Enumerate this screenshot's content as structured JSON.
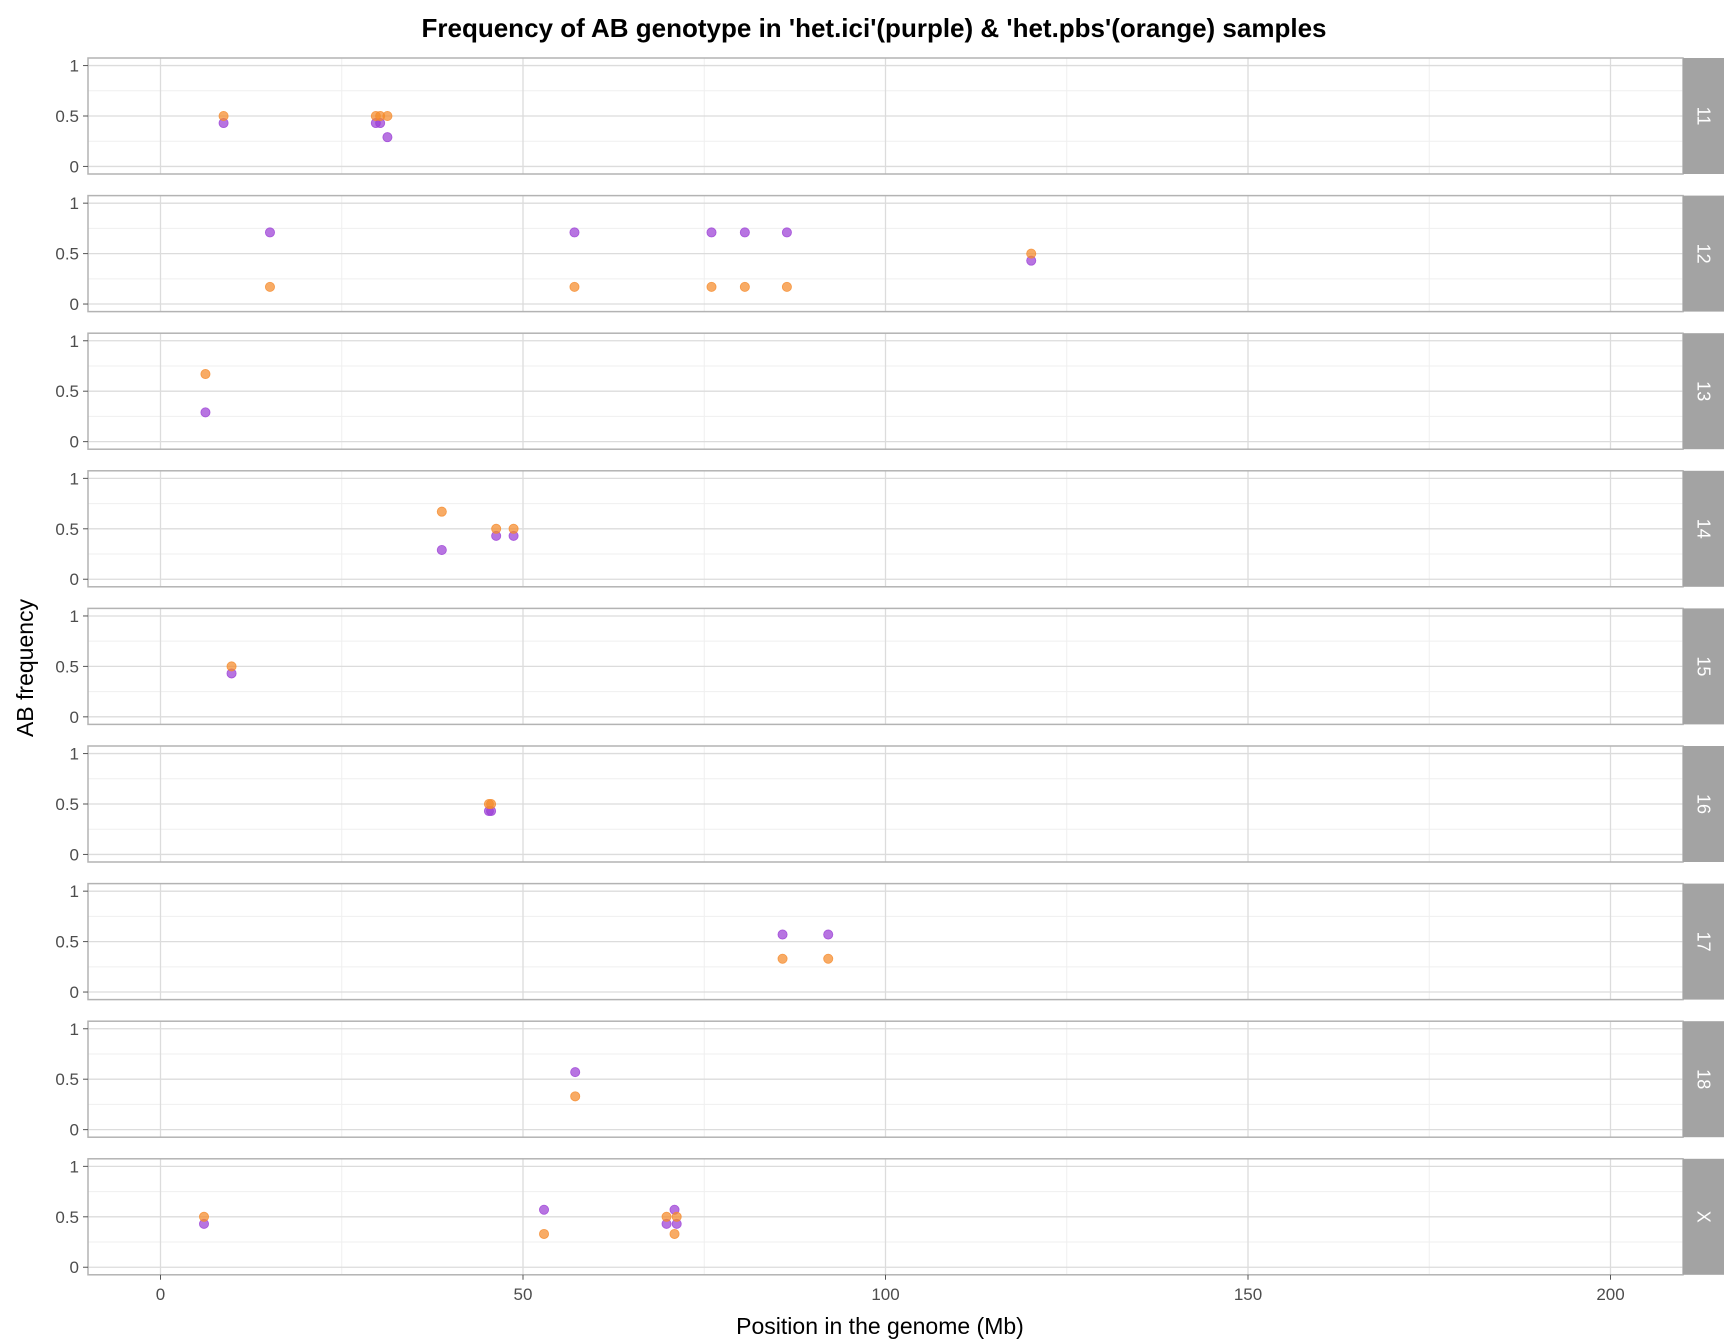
{
  "chart_data": {
    "type": "scatter",
    "title": "Frequency of AB genotype in 'het.ici'(purple) & 'het.pbs'(orange) samples",
    "xlabel": "Position in the genome (Mb)",
    "ylabel": "AB frequency",
    "xlim": [
      -10,
      210
    ],
    "ylim": [
      0,
      1
    ],
    "x_ticks": [
      0,
      50,
      100,
      150,
      200
    ],
    "x_tick_labels": [
      "0",
      "50",
      "100",
      "150",
      "200"
    ],
    "y_ticks": [
      0,
      0.5,
      1
    ],
    "y_tick_labels": [
      "0",
      "0.5",
      "1"
    ],
    "grid": true,
    "facet_strip_position": "right",
    "colors": {
      "het.ici": "#9b3fd6",
      "het.pbs": "#f58a2a",
      "strip": "#a3a3a3",
      "panel_border": "#b3b3b3",
      "grid_major": "#dcdcdc",
      "grid_minor": "#efefef"
    },
    "panels": [
      {
        "label": "11",
        "series": [
          {
            "name": "het.ici",
            "points": [
              [
                8.7,
                0.43
              ],
              [
                29.7,
                0.43
              ],
              [
                30.3,
                0.43
              ],
              [
                31.3,
                0.29
              ]
            ]
          },
          {
            "name": "het.pbs",
            "points": [
              [
                8.7,
                0.5
              ],
              [
                29.7,
                0.5
              ],
              [
                30.3,
                0.5
              ],
              [
                31.3,
                0.5
              ]
            ]
          }
        ]
      },
      {
        "label": "12",
        "series": [
          {
            "name": "het.ici",
            "points": [
              [
                15.1,
                0.71
              ],
              [
                57.1,
                0.71
              ],
              [
                76.0,
                0.71
              ],
              [
                80.6,
                0.71
              ],
              [
                86.4,
                0.71
              ],
              [
                120.1,
                0.43
              ]
            ]
          },
          {
            "name": "het.pbs",
            "points": [
              [
                15.1,
                0.17
              ],
              [
                57.1,
                0.17
              ],
              [
                76.0,
                0.17
              ],
              [
                80.6,
                0.17
              ],
              [
                86.4,
                0.17
              ],
              [
                120.1,
                0.5
              ]
            ]
          }
        ]
      },
      {
        "label": "13",
        "series": [
          {
            "name": "het.ici",
            "points": [
              [
                6.2,
                0.29
              ]
            ]
          },
          {
            "name": "het.pbs",
            "points": [
              [
                6.2,
                0.67
              ]
            ]
          }
        ]
      },
      {
        "label": "14",
        "series": [
          {
            "name": "het.ici",
            "points": [
              [
                38.8,
                0.29
              ],
              [
                46.3,
                0.43
              ],
              [
                48.7,
                0.43
              ]
            ]
          },
          {
            "name": "het.pbs",
            "points": [
              [
                38.8,
                0.67
              ],
              [
                46.3,
                0.5
              ],
              [
                48.7,
                0.5
              ]
            ]
          }
        ]
      },
      {
        "label": "15",
        "series": [
          {
            "name": "het.ici",
            "points": [
              [
                9.8,
                0.43
              ]
            ]
          },
          {
            "name": "het.pbs",
            "points": [
              [
                9.8,
                0.5
              ]
            ]
          }
        ]
      },
      {
        "label": "16",
        "series": [
          {
            "name": "het.ici",
            "points": [
              [
                45.3,
                0.43
              ],
              [
                45.6,
                0.43
              ]
            ]
          },
          {
            "name": "het.pbs",
            "points": [
              [
                45.3,
                0.5
              ],
              [
                45.6,
                0.5
              ]
            ]
          }
        ]
      },
      {
        "label": "17",
        "series": [
          {
            "name": "het.ici",
            "points": [
              [
                85.8,
                0.57
              ],
              [
                92.1,
                0.57
              ]
            ]
          },
          {
            "name": "het.pbs",
            "points": [
              [
                85.8,
                0.33
              ],
              [
                92.1,
                0.33
              ]
            ]
          }
        ]
      },
      {
        "label": "18",
        "series": [
          {
            "name": "het.ici",
            "points": [
              [
                57.2,
                0.57
              ]
            ]
          },
          {
            "name": "het.pbs",
            "points": [
              [
                57.2,
                0.33
              ]
            ]
          }
        ]
      },
      {
        "label": "X",
        "series": [
          {
            "name": "het.ici",
            "points": [
              [
                6.0,
                0.43
              ],
              [
                52.9,
                0.57
              ],
              [
                69.8,
                0.43
              ],
              [
                70.9,
                0.57
              ],
              [
                71.2,
                0.43
              ]
            ]
          },
          {
            "name": "het.pbs",
            "points": [
              [
                6.0,
                0.5
              ],
              [
                52.9,
                0.33
              ],
              [
                69.8,
                0.5
              ],
              [
                70.9,
                0.33
              ],
              [
                71.2,
                0.5
              ]
            ]
          }
        ]
      }
    ]
  }
}
